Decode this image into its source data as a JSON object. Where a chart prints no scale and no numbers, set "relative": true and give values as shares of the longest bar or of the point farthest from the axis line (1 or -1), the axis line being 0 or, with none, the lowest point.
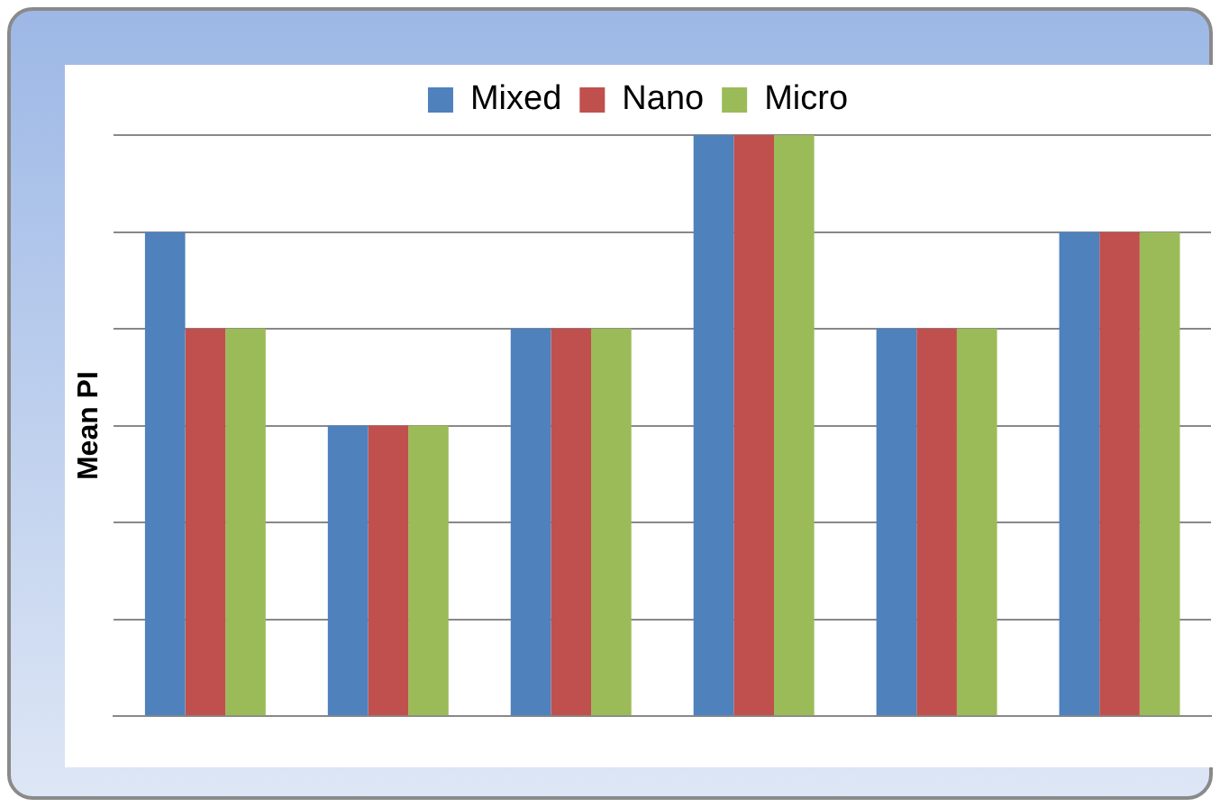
{
  "chart_data": {
    "type": "bar",
    "ylabel": "Mean PI",
    "relative": true,
    "grid": "y",
    "legend": "top",
    "categories": [
      null,
      null,
      null,
      null,
      null,
      null
    ],
    "series": [
      {
        "name": "Mixed",
        "color": "#4f81bd",
        "values": [
          0.833,
          0.5,
          0.667,
          1,
          0.667,
          0.833
        ]
      },
      {
        "name": "Nano",
        "color": "#c0504d",
        "values": [
          0.667,
          0.5,
          0.667,
          1,
          0.667,
          0.833
        ]
      },
      {
        "name": "Micro",
        "color": "#9bbb59",
        "values": [
          0.667,
          0.5,
          0.667,
          1,
          0.667,
          0.833
        ]
      }
    ]
  }
}
